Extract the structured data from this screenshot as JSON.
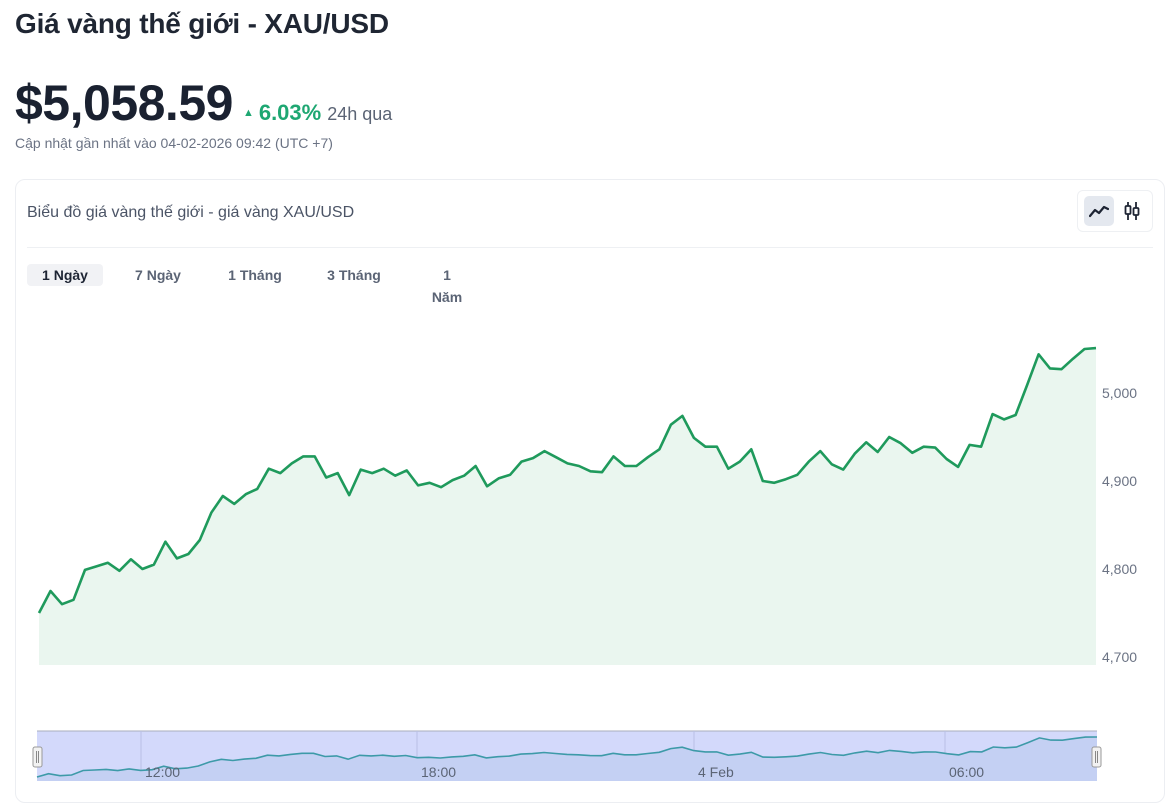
{
  "header": {
    "title": "Giá vàng thế giới - XAU/USD",
    "price": "$5,058.59",
    "change_arrow": "▲",
    "change_pct": "6.03%",
    "change_period": "24h qua",
    "updated": "Cập nhật gần nhất vào 04-02-2026 09:42 (UTC +7)"
  },
  "card": {
    "title": "Biểu đồ giá vàng thế giới - giá vàng XAU/USD",
    "chart_types": [
      {
        "name": "line-chart",
        "active": true
      },
      {
        "name": "candlestick-chart",
        "active": false
      }
    ],
    "ranges": [
      {
        "label": "1 Ngày",
        "active": true
      },
      {
        "label": "7 Ngày",
        "active": false
      },
      {
        "label": "1 Tháng",
        "active": false
      },
      {
        "label": "3 Tháng",
        "active": false
      },
      {
        "label": "1 Năm",
        "active": false
      }
    ]
  },
  "colors": {
    "line": "#1f9a5c",
    "area": "#eaf6ef",
    "up": "#1ea772",
    "navigator_bg": "#d3d9fb",
    "navigator_line": "#3d9aa8"
  },
  "chart_data": {
    "type": "area",
    "title": "Biểu đồ giá vàng thế giới - giá vàng XAU/USD",
    "xlabel": "",
    "ylabel": "",
    "y_ticks": [
      4700,
      4800,
      4900,
      5000
    ],
    "y_tick_labels": [
      "4,700",
      "4,800",
      "4,900",
      "5,000"
    ],
    "ylim": [
      4690,
      5060
    ],
    "y_axis_position": "right",
    "grid": false,
    "legend": "none",
    "navigator_ticks": [
      "12:00",
      "18:00",
      "4 Feb",
      "06:00"
    ],
    "series": [
      {
        "name": "XAU/USD",
        "values": [
          4750,
          4775,
          4760,
          4765,
          4799,
          4803,
          4807,
          4798,
          4811,
          4800,
          4805,
          4831,
          4812,
          4817,
          4833,
          4864,
          4883,
          4874,
          4885,
          4891,
          4914,
          4909,
          4920,
          4928,
          4928,
          4904,
          4909,
          4884,
          4913,
          4909,
          4914,
          4906,
          4912,
          4895,
          4898,
          4893,
          4901,
          4906,
          4917,
          4894,
          4903,
          4907,
          4922,
          4926,
          4934,
          4927,
          4920,
          4917,
          4911,
          4910,
          4928,
          4917,
          4917,
          4927,
          4936,
          4964,
          4974,
          4949,
          4939,
          4939,
          4914,
          4922,
          4936,
          4900,
          4898,
          4902,
          4907,
          4922,
          4934,
          4919,
          4913,
          4931,
          4944,
          4933,
          4950,
          4943,
          4932,
          4939,
          4938,
          4925,
          4916,
          4941,
          4939,
          4976,
          4970,
          4975,
          5009,
          5044,
          5028,
          5027,
          5039,
          5050,
          5051
        ]
      }
    ]
  }
}
